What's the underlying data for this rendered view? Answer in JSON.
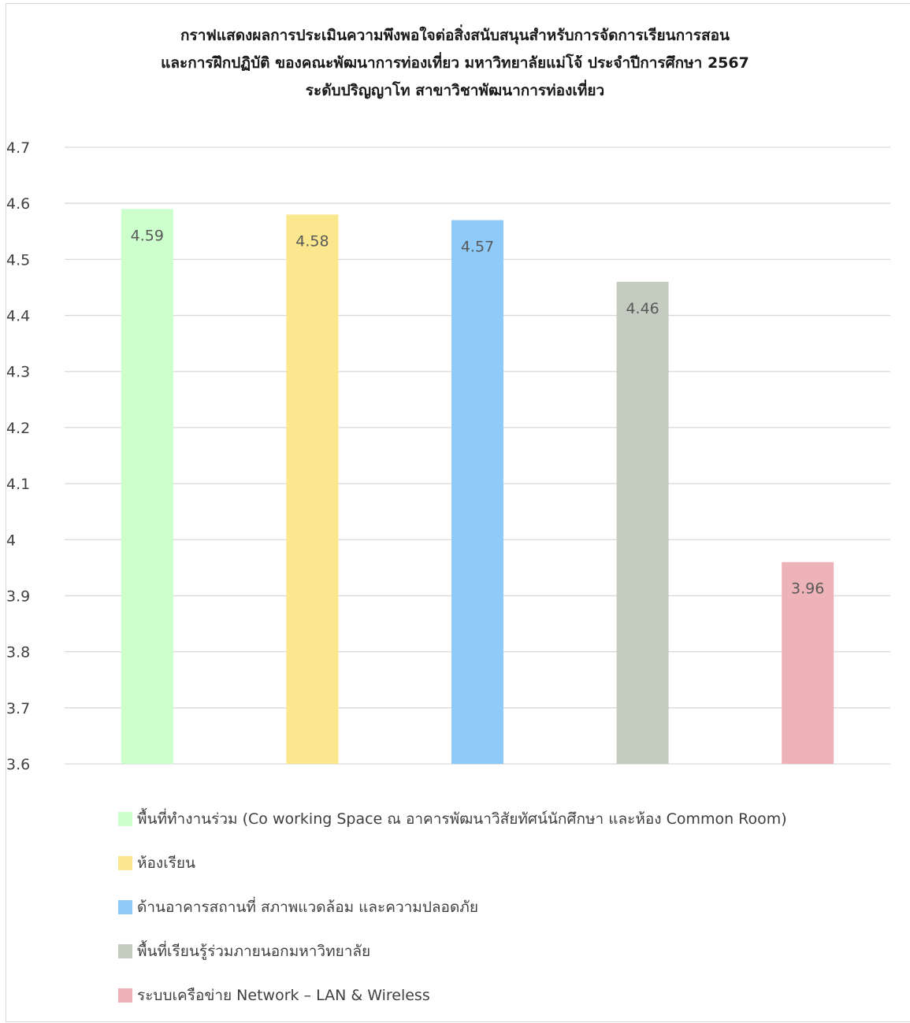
{
  "chart_data": {
    "type": "bar",
    "title_lines": [
      "กราฟแสดงผลการประเมินความพึงพอใจต่อสิ่งสนับสนุนสำหรับการจัดการเรียนการสอน",
      "และการฝึกปฏิบัติ ของคณะพัฒนาการท่องเที่ยว มหาวิทยาลัยแม่โจ้ ประจำปีการศึกษา 2567",
      "ระดับปริญญาโท สาขาวิชาพัฒนาการท่องเที่ยว"
    ],
    "ylim": [
      3.6,
      4.7
    ],
    "yticks": [
      "4.7",
      "4.6",
      "4.5",
      "4.4",
      "4.3",
      "4.2",
      "4.1",
      "4",
      "3.9",
      "3.8",
      "3.7",
      "3.6"
    ],
    "grid": true,
    "legend_position": "bottom",
    "series": [
      {
        "name": "พื้นที่ทำงานร่วม (Co working Space ณ อาคารพัฒนาวิสัยทัศน์นักศึกษา และห้อง Common Room)",
        "value": 4.59,
        "label": "4.59",
        "color": "#ccffcc"
      },
      {
        "name": "ห้องเรียน",
        "value": 4.58,
        "label": "4.58",
        "color": "#fbe78e"
      },
      {
        "name": "ด้านอาคารสถานที่ สภาพแวดล้อม และความปลอดภัย",
        "value": 4.57,
        "label": "4.57",
        "color": "#8ecbfa"
      },
      {
        "name": "พื้นที่เรียนรู้ร่วมภายนอกมหาวิทยาลัย",
        "value": 4.46,
        "label": "4.46",
        "color": "#c4cbbf"
      },
      {
        "name": "ระบบเครือข่าย Network – LAN & Wireless",
        "value": 3.96,
        "label": "3.96",
        "color": "#eeb3b8"
      }
    ]
  }
}
